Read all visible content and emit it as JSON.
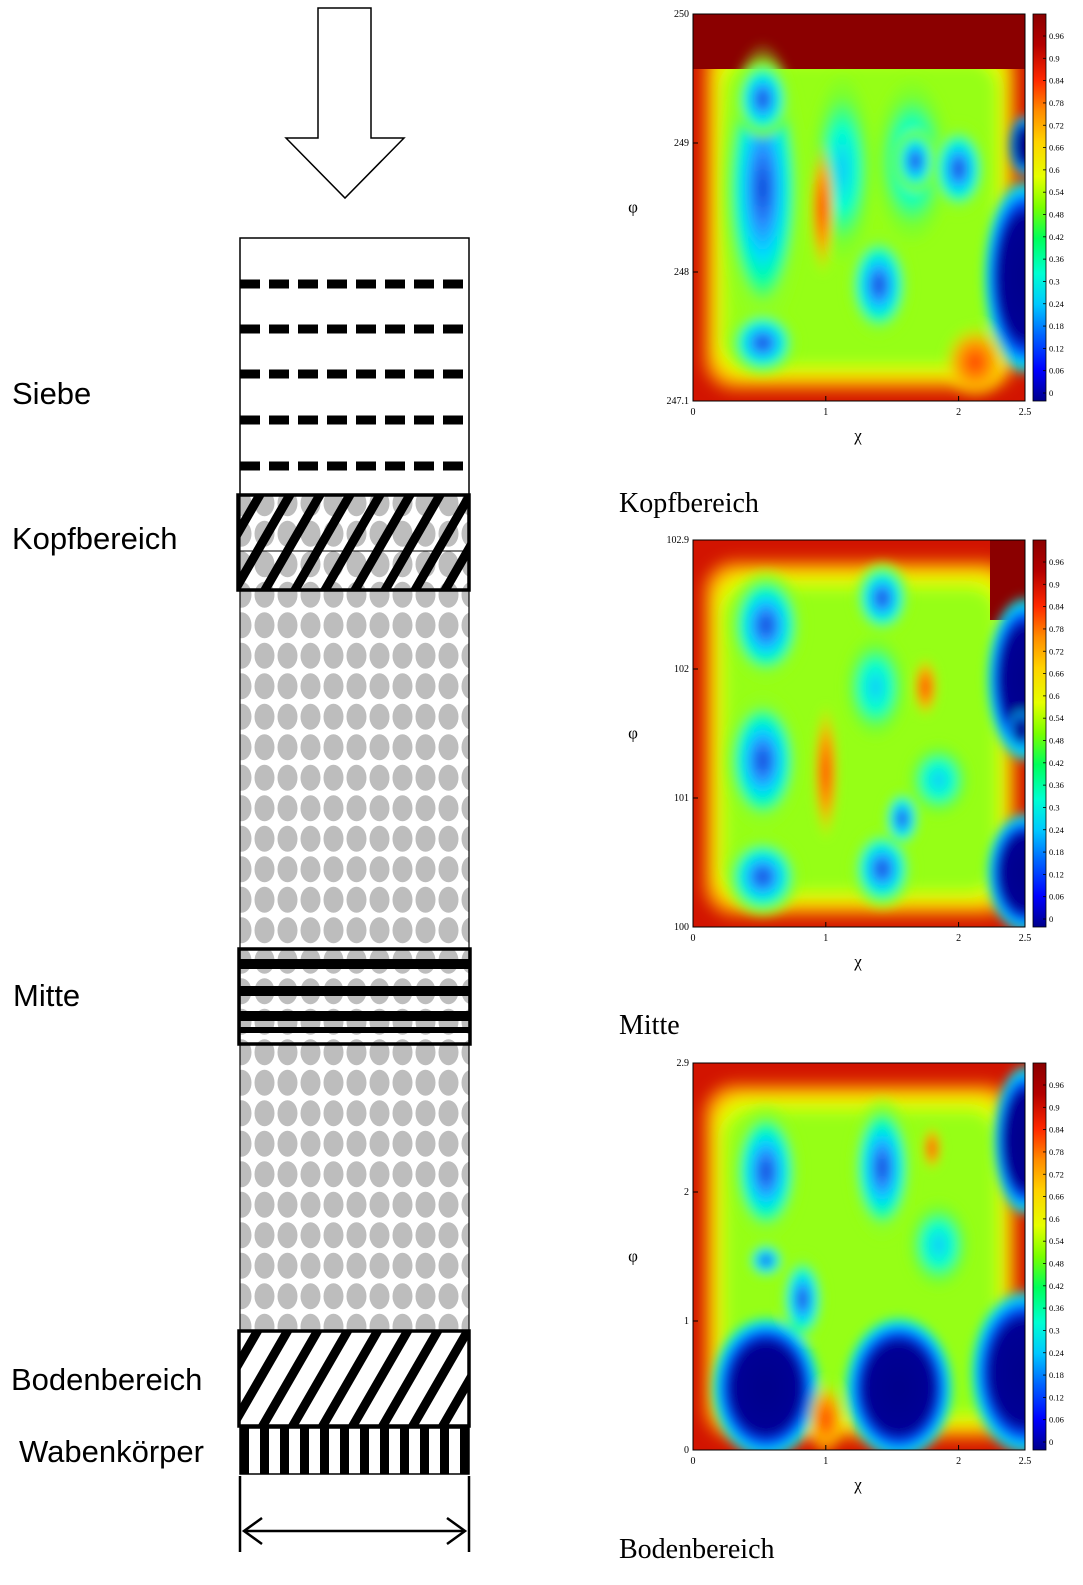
{
  "diagram": {
    "labels": {
      "siebe": "Siebe",
      "kopfbereich": "Kopfbereich",
      "mitte": "Mitte",
      "bodenbereich": "Bodenbereich",
      "wabenkoerper": "Wabenkörper"
    },
    "icons": {
      "flow": "down-arrow-icon",
      "width": "double-arrow-icon"
    }
  },
  "heatmaps": [
    {
      "caption": "Kopfbereich",
      "xlabel": "χ",
      "ylabel": "φ",
      "xticks": [
        "0",
        "1",
        "2",
        "2.5"
      ],
      "yticks": [
        "247.1",
        "248",
        "249",
        "250"
      ]
    },
    {
      "caption": "Mitte",
      "xlabel": "χ",
      "ylabel": "φ",
      "xticks": [
        "0",
        "1",
        "2",
        "2.5"
      ],
      "yticks": [
        "100",
        "101",
        "102",
        "102.9"
      ]
    },
    {
      "caption": "Bodenbereich",
      "xlabel": "χ",
      "ylabel": "φ",
      "xticks": [
        "0",
        "1",
        "2",
        "2.5"
      ],
      "yticks": [
        "0",
        "1",
        "2",
        "2.9"
      ]
    }
  ],
  "colorbar_ticks": [
    "0.96",
    "0.9",
    "0.84",
    "0.78",
    "0.72",
    "0.66",
    "0.6",
    "0.54",
    "0.48",
    "0.42",
    "0.36",
    "0.3",
    "0.24",
    "0.18",
    "0.12",
    "0.06",
    "0"
  ],
  "colors": {
    "bead": "#bdbdbd",
    "line": "#000000",
    "scale": [
      "#00008b",
      "#0000ff",
      "#0064ff",
      "#00c8ff",
      "#00ffd2",
      "#00ff5a",
      "#78ff00",
      "#e6ff00",
      "#ffd200",
      "#ff8c00",
      "#ff2800",
      "#b40000",
      "#8b0000"
    ]
  }
}
